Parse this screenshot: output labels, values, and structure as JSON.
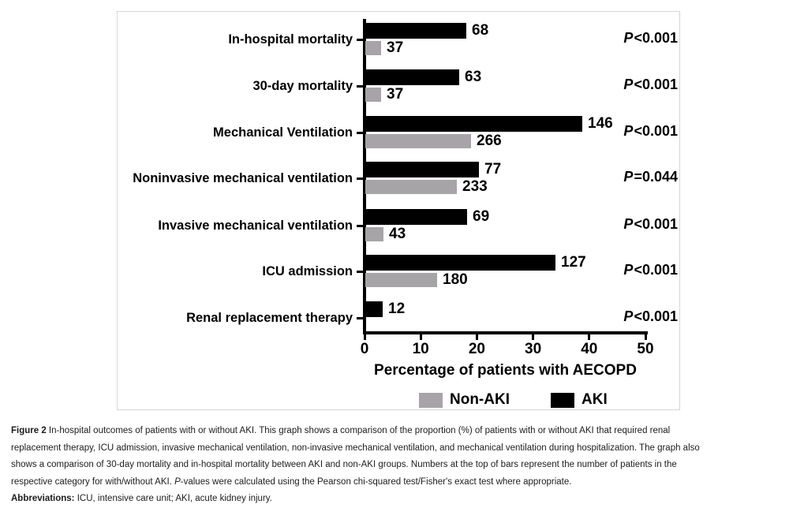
{
  "chart_data": {
    "type": "bar",
    "orientation": "horizontal",
    "title": "",
    "xlabel": "Percentage of patients with AECOPD",
    "ylabel": "",
    "xlim": [
      0,
      50
    ],
    "xticks": [
      0,
      10,
      20,
      30,
      40,
      50
    ],
    "grid": false,
    "legend_position": "bottom",
    "colors": {
      "aki": "#000000",
      "non_aki": "#a7a4a7"
    },
    "legend": [
      {
        "label": "Non-AKI",
        "key": "non_aki"
      },
      {
        "label": "AKI",
        "key": "aki"
      }
    ],
    "rows": [
      {
        "category": "In-hospital mortality",
        "aki": {
          "count": 68,
          "pct": 18.1
        },
        "non_aki": {
          "count": 37,
          "pct": 2.9
        },
        "p": "P<0.001"
      },
      {
        "category": "30-day mortality",
        "aki": {
          "count": 63,
          "pct": 16.8
        },
        "non_aki": {
          "count": 37,
          "pct": 2.9
        },
        "p": "P<0.001"
      },
      {
        "category": "Mechanical Ventilation",
        "aki": {
          "count": 146,
          "pct": 38.8
        },
        "non_aki": {
          "count": 266,
          "pct": 19.0
        },
        "p": "P<0.001"
      },
      {
        "category": "Noninvasive mechanical ventilation",
        "aki": {
          "count": 77,
          "pct": 20.4
        },
        "non_aki": {
          "count": 233,
          "pct": 16.4
        },
        "p": "P=0.044"
      },
      {
        "category": "Invasive mechanical ventilation",
        "aki": {
          "count": 69,
          "pct": 18.3
        },
        "non_aki": {
          "count": 43,
          "pct": 3.4
        },
        "p": "P<0.001"
      },
      {
        "category": "ICU admission",
        "aki": {
          "count": 127,
          "pct": 34.0
        },
        "non_aki": {
          "count": 180,
          "pct": 12.9
        },
        "p": "P<0.001"
      },
      {
        "category": "Renal replacement therapy",
        "aki": {
          "count": 12,
          "pct": 3.2
        },
        "non_aki": {
          "count": null,
          "pct": null
        },
        "p": "P<0.001"
      }
    ]
  },
  "caption": {
    "figure_label": "Figure 2",
    "line1": " In-hospital outcomes of patients with or without AKI. This graph shows a comparison of the proportion (%) of patients with or without AKI that required renal",
    "line2": "replacement therapy, ICU admission, invasive mechanical ventilation, non-invasive mechanical ventilation, and mechanical ventilation during hospitalization. The graph also",
    "line3": "shows a comparison of 30-day mortality and in-hospital mortality between AKI and non-AKI groups. Numbers at the top of bars represent the number of patients in the",
    "line4_pre": "respective category for with/without AKI. ",
    "line4_p": "P",
    "line4_rest": "-values were calculated using the Pearson chi-squared test/Fisher's exact test where appropriate.",
    "abbr_label": "Abbreviations:",
    "abbr_rest": " ICU, intensive care unit; AKI, acute kidney injury."
  }
}
